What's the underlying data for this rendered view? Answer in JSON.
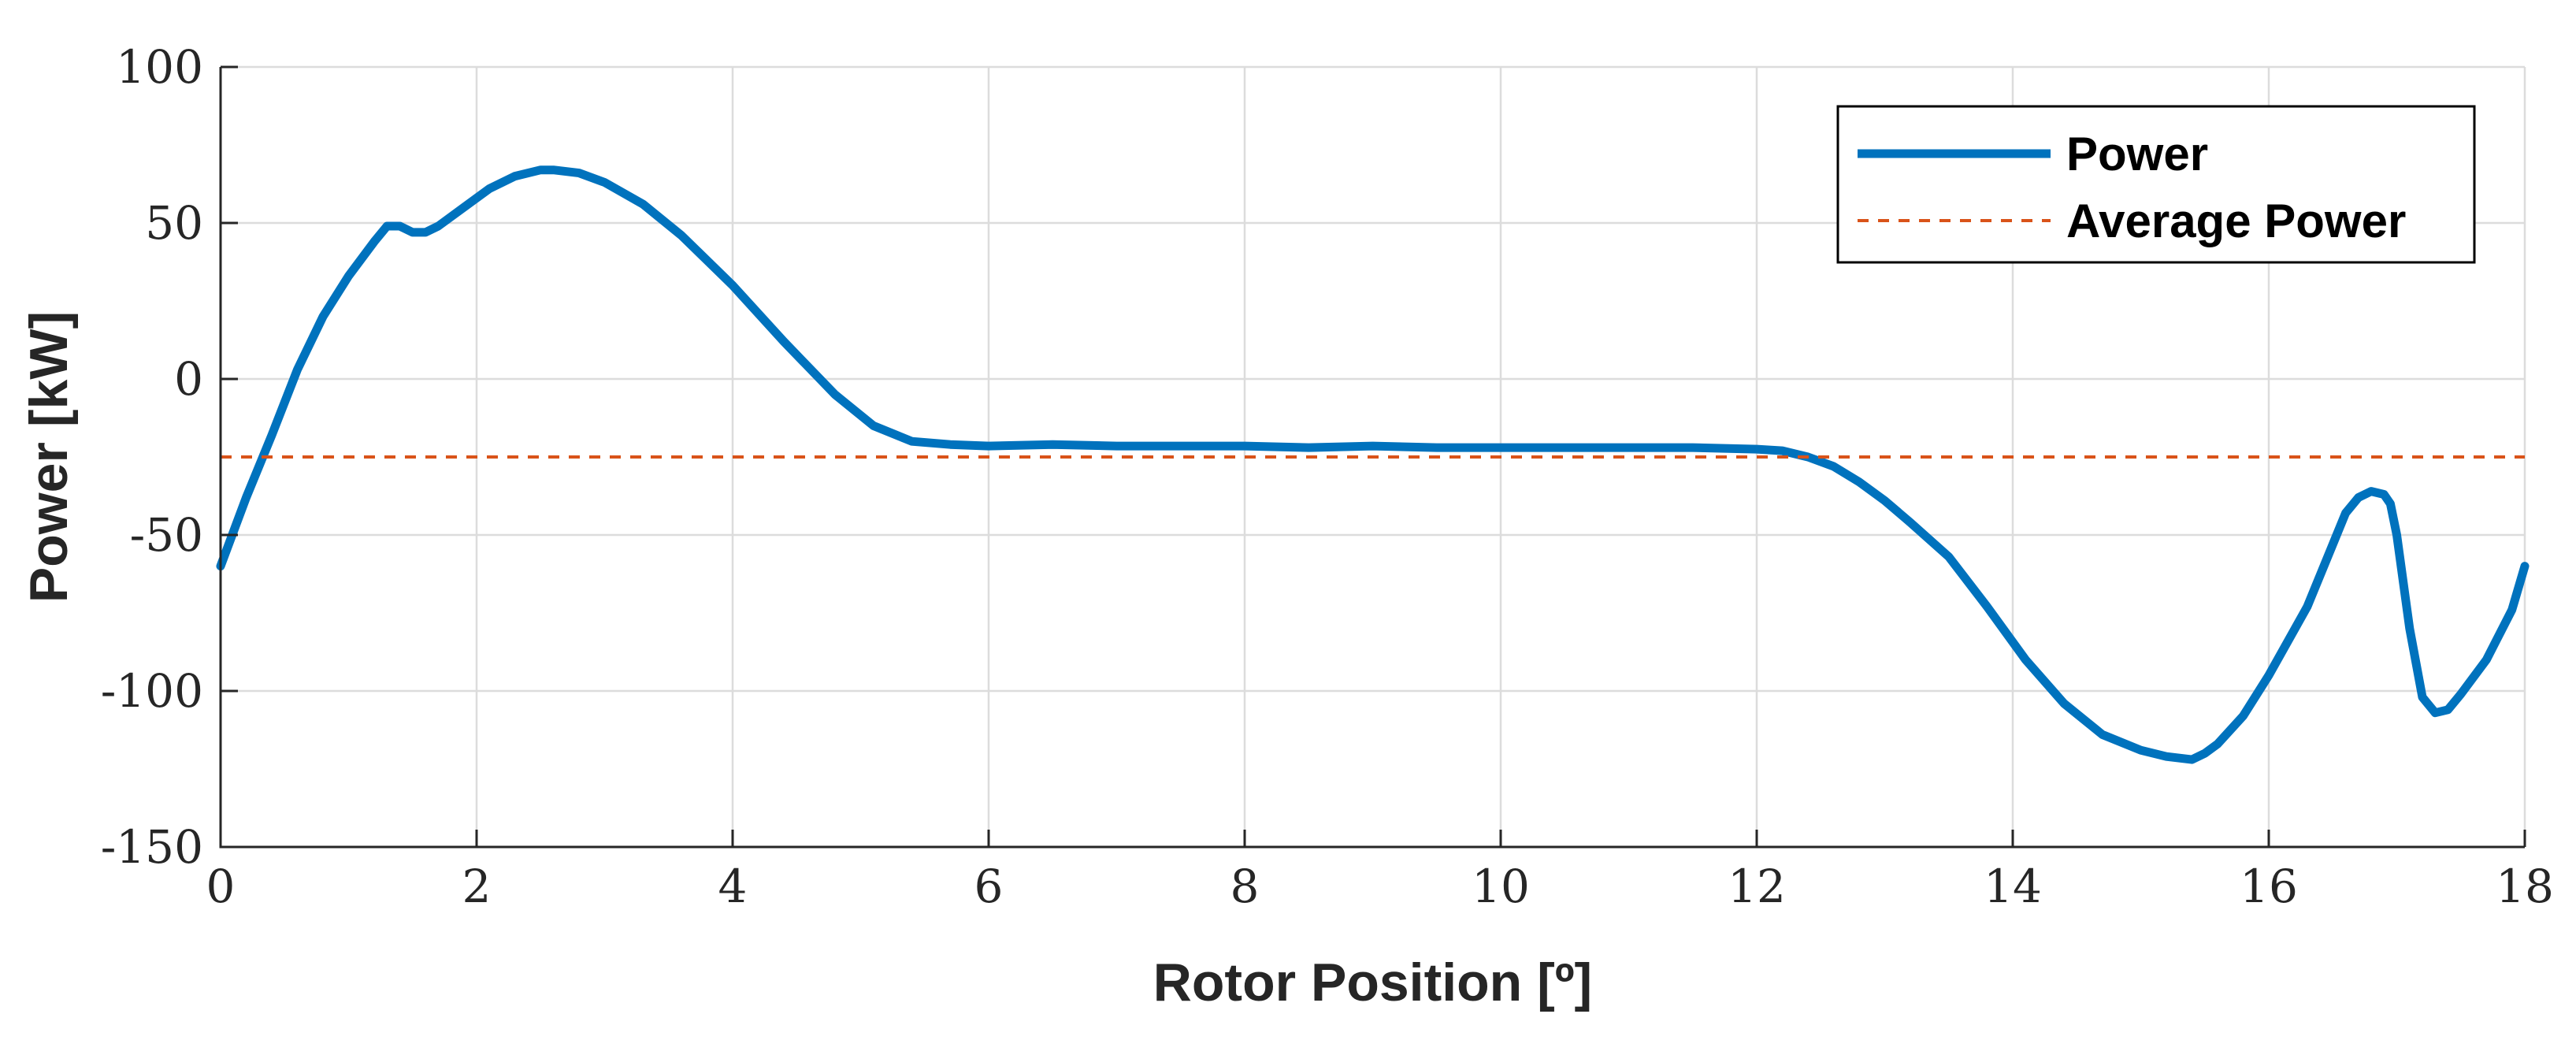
{
  "chart_data": {
    "type": "line",
    "xlabel": "Rotor Position [º]",
    "ylabel": "Power [kW]",
    "xlim": [
      0,
      18
    ],
    "ylim": [
      -150,
      100
    ],
    "x_ticks": [
      0,
      2,
      4,
      6,
      8,
      10,
      12,
      14,
      16,
      18
    ],
    "y_ticks": [
      100,
      50,
      0,
      -50,
      -100,
      -150
    ],
    "x_tick_labels": [
      "0",
      "2",
      "4",
      "6",
      "8",
      "10",
      "12",
      "14",
      "16",
      "18"
    ],
    "y_tick_labels": [
      "100",
      "50",
      "0",
      "-50",
      "-100",
      "-150"
    ],
    "grid": true,
    "legend_position": "top-right",
    "series": [
      {
        "name": "Power",
        "color": "#0072BD",
        "style": "solid",
        "x": [
          0,
          0.2,
          0.4,
          0.6,
          0.8,
          1.0,
          1.2,
          1.3,
          1.4,
          1.5,
          1.6,
          1.7,
          1.9,
          2.1,
          2.3,
          2.5,
          2.6,
          2.8,
          3.0,
          3.3,
          3.6,
          4.0,
          4.4,
          4.8,
          5.1,
          5.4,
          5.7,
          6.0,
          6.5,
          7.0,
          7.5,
          8.0,
          8.5,
          9.0,
          9.5,
          10.0,
          10.5,
          11.0,
          11.5,
          12.0,
          12.2,
          12.4,
          12.6,
          12.8,
          13.0,
          13.2,
          13.5,
          13.8,
          14.1,
          14.4,
          14.7,
          15.0,
          15.2,
          15.4,
          15.5,
          15.6,
          15.8,
          16.0,
          16.3,
          16.5,
          16.6,
          16.7,
          16.8,
          16.9,
          16.95,
          17.0,
          17.1,
          17.2,
          17.3,
          17.4,
          17.5,
          17.7,
          17.9,
          18.0
        ],
        "y": [
          -60,
          -38,
          -18,
          3,
          20,
          33,
          44,
          49,
          49,
          47,
          47,
          49,
          55,
          61,
          65,
          67,
          67,
          66,
          63,
          56,
          46,
          30,
          12,
          -5,
          -15,
          -20,
          -21,
          -21.5,
          -21,
          -21.5,
          -21.5,
          -21.5,
          -22,
          -21.5,
          -22,
          -22,
          -22,
          -22,
          -22,
          -22.5,
          -23,
          -25,
          -28,
          -33,
          -39,
          -46,
          -57,
          -73,
          -90,
          -104,
          -114,
          -119,
          -121,
          -122,
          -120,
          -117,
          -108,
          -95,
          -73,
          -53,
          -43,
          -38,
          -36,
          -37,
          -40,
          -50,
          -80,
          -102,
          -107,
          -106,
          -101,
          -90,
          -74,
          -60
        ]
      },
      {
        "name": "Average Power",
        "color": "#D95319",
        "style": "dashed",
        "x": [
          0,
          18
        ],
        "y": [
          -25,
          -25
        ]
      }
    ]
  }
}
